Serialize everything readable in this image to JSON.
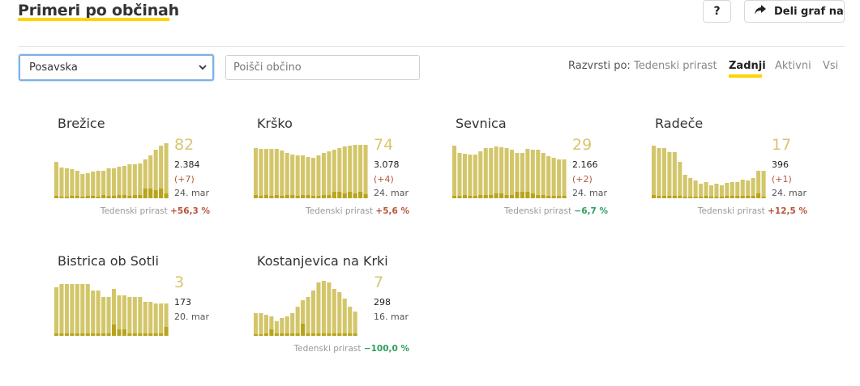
{
  "header": {
    "title": "Primeri po občinah",
    "help_label": "?",
    "share_label": "Deli graf na"
  },
  "controls": {
    "region_selected": "Posavska",
    "search_placeholder": "Poišči občino",
    "sort_label": "Razvrsti po:",
    "sort_options": [
      "Tedenski prirast",
      "Zadnji",
      "Aktivni",
      "Vsi"
    ],
    "sort_selected": "Zadnji"
  },
  "colors": {
    "accent": "#ffd400",
    "bar": "#d3c66a",
    "bar_dark": "#b8a41c",
    "positive": "#b5543a",
    "negative": "#2e9d5f"
  },
  "cards": [
    {
      "name": "Brežice",
      "active": "82",
      "total": "2.384",
      "delta": "(+7)",
      "date": "24. mar",
      "weekly_label": "Tedenski prirast",
      "weekly_value": "+56,3 %",
      "weekly_trend": "up",
      "chart_data": {
        "type": "bar",
        "values": [
          45,
          38,
          37,
          36,
          34,
          30,
          31,
          33,
          34,
          34,
          37,
          37,
          39,
          40,
          42,
          42,
          43,
          48,
          53,
          60,
          65,
          68
        ],
        "dark_values": [
          3,
          2,
          2,
          3,
          3,
          2,
          3,
          3,
          2,
          4,
          3,
          3,
          4,
          4,
          3,
          4,
          4,
          12,
          12,
          10,
          12,
          6
        ]
      }
    },
    {
      "name": "Krško",
      "active": "74",
      "total": "3.078",
      "delta": "(+4)",
      "date": "24. mar",
      "weekly_label": "Tedenski prirast",
      "weekly_value": "+5,6 %",
      "weekly_trend": "up",
      "chart_data": {
        "type": "bar",
        "values": [
          62,
          61,
          61,
          61,
          61,
          59,
          56,
          54,
          53,
          53,
          51,
          50,
          53,
          56,
          58,
          60,
          62,
          64,
          65,
          66,
          66,
          66
        ],
        "dark_values": [
          4,
          3,
          4,
          3,
          4,
          3,
          4,
          4,
          3,
          4,
          4,
          3,
          3,
          4,
          4,
          8,
          8,
          6,
          8,
          6,
          8,
          5
        ]
      }
    },
    {
      "name": "Sevnica",
      "active": "29",
      "total": "2.166",
      "delta": "(+2)",
      "date": "24. mar",
      "weekly_label": "Tedenski prirast",
      "weekly_value": "−6,7 %",
      "weekly_trend": "down",
      "chart_data": {
        "type": "bar",
        "values": [
          65,
          56,
          55,
          54,
          54,
          58,
          62,
          62,
          64,
          63,
          62,
          60,
          56,
          56,
          61,
          60,
          60,
          56,
          52,
          50,
          48,
          48
        ],
        "dark_values": [
          3,
          3,
          4,
          3,
          3,
          4,
          4,
          4,
          6,
          6,
          4,
          4,
          8,
          8,
          8,
          6,
          4,
          4,
          3,
          3,
          3,
          3
        ]
      }
    },
    {
      "name": "Radeče",
      "active": "17",
      "total": "396",
      "delta": "(+1)",
      "date": "24. mar",
      "weekly_label": "Tedenski prirast",
      "weekly_value": "+12,5 %",
      "weekly_trend": "up",
      "chart_data": {
        "type": "bar",
        "values": [
          65,
          62,
          62,
          57,
          57,
          45,
          29,
          25,
          22,
          18,
          20,
          16,
          18,
          16,
          19,
          20,
          20,
          23,
          22,
          25,
          34,
          34
        ],
        "dark_values": [
          4,
          3,
          3,
          3,
          3,
          3,
          2,
          2,
          2,
          2,
          3,
          2,
          2,
          2,
          3,
          3,
          3,
          3,
          3,
          3,
          6,
          2
        ]
      }
    },
    {
      "name": "Bistrica ob Sotli",
      "active": "3",
      "total": "173",
      "delta": "",
      "date": "20. mar",
      "weekly_label": "",
      "weekly_value": "",
      "weekly_trend": "",
      "chart_data": {
        "type": "bar",
        "values": [
          60,
          64,
          64,
          64,
          64,
          64,
          64,
          56,
          56,
          48,
          48,
          58,
          50,
          50,
          48,
          48,
          48,
          42,
          42,
          40,
          40,
          40,
          28,
          16,
          16
        ],
        "dark_values": [
          3,
          3,
          3,
          3,
          3,
          3,
          3,
          3,
          3,
          3,
          3,
          14,
          8,
          8,
          3,
          3,
          3,
          3,
          3,
          3,
          3,
          11,
          3,
          3,
          3
        ]
      }
    },
    {
      "name": "Kostanjevica na Krki",
      "active": "7",
      "total": "298",
      "delta": "",
      "date": "16. mar",
      "weekly_label": "Tedenski prirast",
      "weekly_value": "−100,0 %",
      "weekly_trend": "down",
      "chart_data": {
        "type": "bar",
        "values": [
          28,
          28,
          26,
          24,
          18,
          22,
          24,
          28,
          36,
          44,
          48,
          56,
          66,
          68,
          66,
          58,
          54,
          46,
          36,
          30
        ],
        "dark_values": [
          2,
          2,
          3,
          8,
          3,
          3,
          3,
          3,
          3,
          15,
          3,
          3,
          3,
          3,
          3,
          3,
          3,
          3,
          3,
          3
        ]
      }
    }
  ]
}
